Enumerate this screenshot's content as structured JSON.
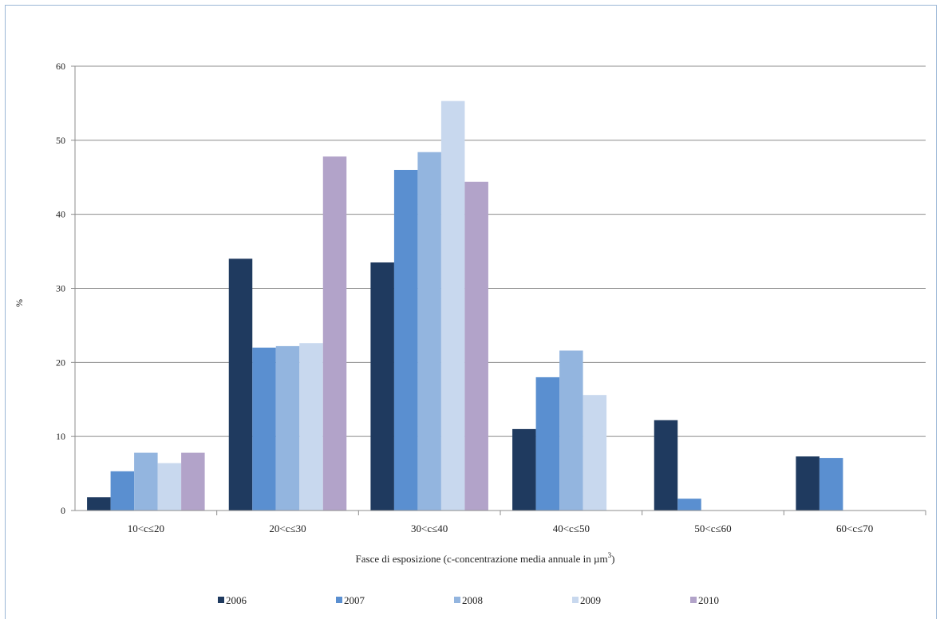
{
  "chart_data": {
    "type": "bar",
    "title": "",
    "ylabel": "%",
    "xlabel": "Fasce di esposizione (c-concentrazione media annuale in µm",
    "xlabel_sup": "3",
    "xlabel_close": ")",
    "ylim": [
      0,
      60
    ],
    "yticks": [
      0,
      10,
      20,
      30,
      40,
      50,
      60
    ],
    "grid": true,
    "legend_position": "bottom",
    "categories": [
      "10<c≤20",
      "20<c≤30",
      "30<c≤40",
      "40<c≤50",
      "50<c≤60",
      "60<c≤70"
    ],
    "series": [
      {
        "name": "2006",
        "color": "#1f3a5f",
        "values": [
          1.8,
          34.0,
          33.5,
          11.0,
          12.2,
          7.3
        ]
      },
      {
        "name": "2007",
        "color": "#5a8fd0",
        "values": [
          5.3,
          22.0,
          46.0,
          18.0,
          1.6,
          7.1
        ]
      },
      {
        "name": "2008",
        "color": "#93b5df",
        "values": [
          7.8,
          22.2,
          48.4,
          21.6,
          0,
          0
        ]
      },
      {
        "name": "2009",
        "color": "#c8d8ee",
        "values": [
          6.4,
          22.6,
          55.3,
          15.6,
          0,
          0
        ]
      },
      {
        "name": "2010",
        "color": "#b2a3c9",
        "values": [
          7.8,
          47.8,
          44.4,
          0,
          0,
          0
        ]
      }
    ]
  }
}
